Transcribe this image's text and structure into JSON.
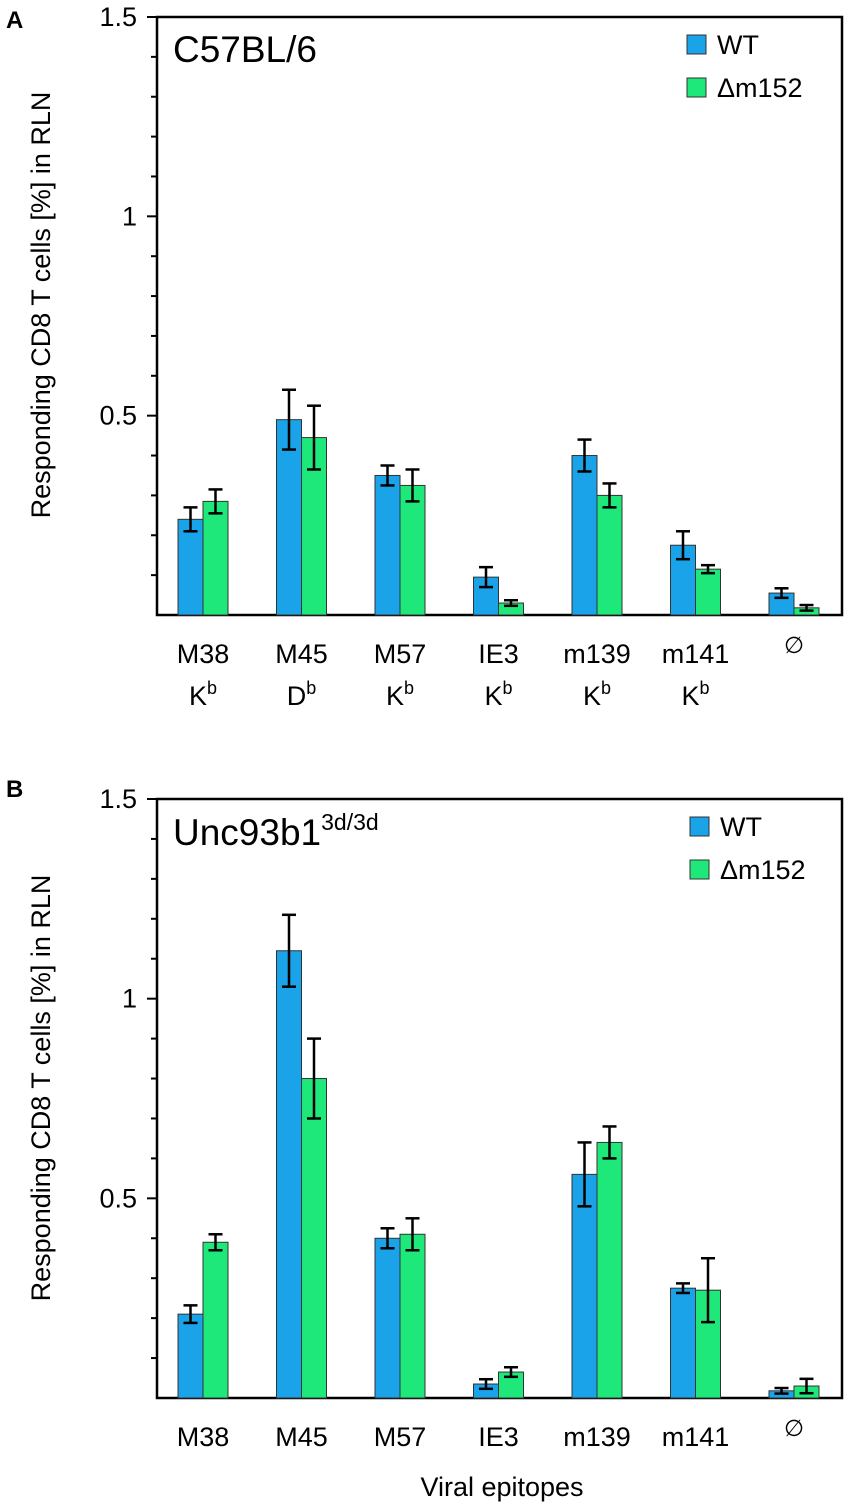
{
  "colors": {
    "wt": "#1aa3e8",
    "dm152": "#1ee87a",
    "axis": "#000000",
    "bar_edge": "#333333"
  },
  "xlabel": "Viral epitopes",
  "chart_data": [
    {
      "type": "bar",
      "panel_label": "A",
      "title": "C57BL/6",
      "title_sup": "",
      "ylabel": "Responding CD8 T cells [%] in RLN",
      "ylim": [
        0,
        1.5
      ],
      "yticks": [
        "0.5",
        "1",
        "1.5"
      ],
      "ytick_values": [
        0.5,
        1,
        1.5
      ],
      "minor_step": 0.1,
      "categories": [
        "M38",
        "M45",
        "M57",
        "IE3",
        "m139",
        "m141",
        "∅"
      ],
      "subcategories": [
        {
          "base": "K",
          "sup": "b"
        },
        {
          "base": "D",
          "sup": "b"
        },
        {
          "base": "K",
          "sup": "b"
        },
        {
          "base": "K",
          "sup": "b"
        },
        {
          "base": "K",
          "sup": "b"
        },
        {
          "base": "K",
          "sup": "b"
        },
        null
      ],
      "legend": {
        "position": "top-right",
        "entries": [
          "WT",
          "Δm152"
        ]
      },
      "series": [
        {
          "name": "WT",
          "values": [
            0.24,
            0.49,
            0.35,
            0.095,
            0.4,
            0.175,
            0.055
          ],
          "errors": [
            0.03,
            0.075,
            0.025,
            0.025,
            0.04,
            0.035,
            0.012
          ]
        },
        {
          "name": "Δm152",
          "values": [
            0.285,
            0.445,
            0.325,
            0.03,
            0.3,
            0.115,
            0.018
          ],
          "errors": [
            0.03,
            0.08,
            0.04,
            0.007,
            0.03,
            0.01,
            0.007
          ]
        }
      ]
    },
    {
      "type": "bar",
      "panel_label": "B",
      "title": "Unc93b1",
      "title_sup": "3d/3d",
      "ylabel": "Responding CD8 T cells [%] in RLN",
      "ylim": [
        0,
        1.5
      ],
      "yticks": [
        "0.5",
        "1",
        "1.5"
      ],
      "ytick_values": [
        0.5,
        1,
        1.5
      ],
      "minor_step": 0.1,
      "categories": [
        "M38",
        "M45",
        "M57",
        "IE3",
        "m139",
        "m141",
        "∅"
      ],
      "subcategories": [
        null,
        null,
        null,
        null,
        null,
        null,
        null
      ],
      "legend": {
        "position": "top-right",
        "entries": [
          "WT",
          "Δm152"
        ]
      },
      "series": [
        {
          "name": "WT",
          "values": [
            0.21,
            1.12,
            0.4,
            0.035,
            0.56,
            0.275,
            0.018
          ],
          "errors": [
            0.022,
            0.09,
            0.025,
            0.012,
            0.08,
            0.012,
            0.007
          ]
        },
        {
          "name": "Δm152",
          "values": [
            0.39,
            0.8,
            0.41,
            0.065,
            0.64,
            0.27,
            0.03
          ],
          "errors": [
            0.02,
            0.1,
            0.04,
            0.012,
            0.04,
            0.08,
            0.018
          ]
        }
      ]
    }
  ]
}
